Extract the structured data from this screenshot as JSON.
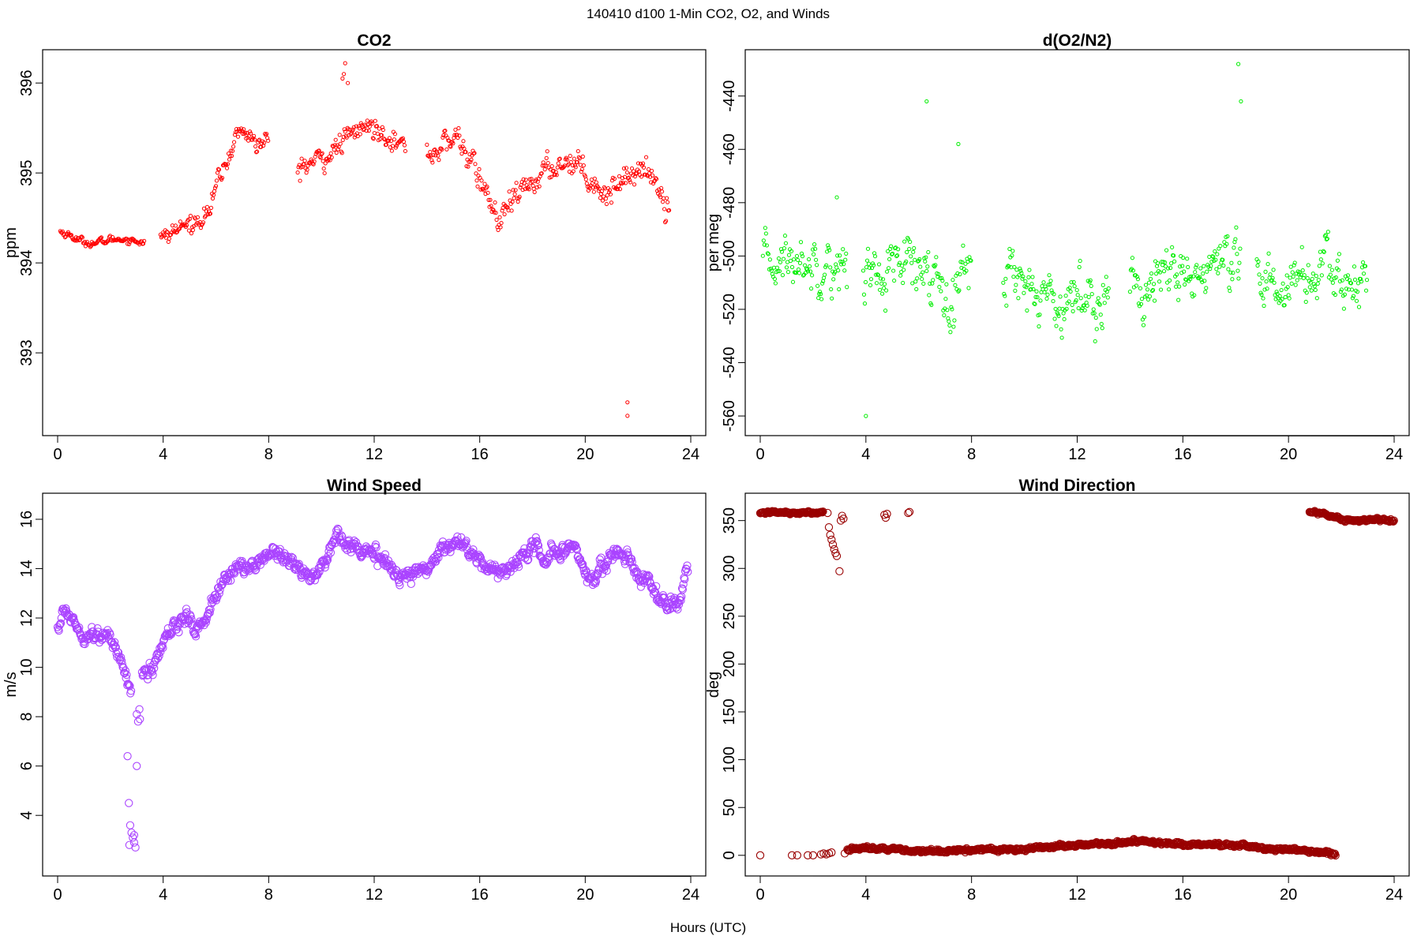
{
  "figure": {
    "title": "140410   d100   1-Min CO2, O2, and Winds",
    "xlabel": "Hours (UTC)"
  },
  "chart_data": [
    {
      "id": "co2",
      "type": "scatter",
      "title": "CO2",
      "xlabel": "",
      "ylabel": "ppm",
      "xlim": [
        0,
        24
      ],
      "ylim": [
        392.15,
        396.3
      ],
      "xticks": [
        0,
        4,
        8,
        12,
        16,
        20,
        24
      ],
      "yticks": [
        393,
        394,
        395,
        396
      ],
      "color": "#ff0000",
      "marker": "small-open-circle",
      "segments": [
        {
          "x": [
            0.1,
            0.5,
            1.0,
            1.5,
            2.0,
            2.5,
            3.0,
            3.3
          ],
          "y": [
            394.35,
            394.3,
            394.23,
            394.22,
            394.26,
            394.27,
            394.24,
            394.25
          ],
          "noise": 0.04
        },
        {
          "x": [
            3.9,
            4.3,
            4.7,
            5.2,
            5.8,
            6.1,
            6.4,
            6.8,
            7.2,
            7.6,
            8.0
          ],
          "y": [
            394.25,
            394.33,
            394.4,
            394.45,
            394.6,
            394.95,
            395.1,
            395.45,
            395.45,
            395.3,
            395.35
          ],
          "noise": 0.1
        },
        {
          "x": [
            9.1,
            9.5,
            10.0,
            10.5,
            11.0,
            11.5,
            12.0,
            12.5,
            13.0,
            13.2
          ],
          "y": [
            395.05,
            395.1,
            395.15,
            395.25,
            395.4,
            395.5,
            395.5,
            395.45,
            395.3,
            395.3
          ],
          "noise": 0.12
        },
        {
          "x": [
            14.0,
            14.6,
            15.2,
            15.8,
            16.3,
            16.7,
            17.2,
            17.8,
            18.4,
            19.0,
            19.6,
            20.2,
            20.8,
            21.4,
            22.0,
            22.6,
            23.2
          ],
          "y": [
            395.2,
            395.3,
            395.4,
            395.05,
            394.75,
            394.45,
            394.65,
            394.85,
            395.0,
            395.1,
            395.15,
            394.95,
            394.75,
            394.95,
            395.05,
            394.95,
            394.6
          ],
          "noise": 0.14
        }
      ],
      "outliers": [
        {
          "x": [
            10.8,
            10.85,
            10.9,
            11.0
          ],
          "y": [
            396.05,
            396.1,
            396.22,
            396.0
          ]
        },
        {
          "x": [
            21.6,
            21.6
          ],
          "y": [
            392.45,
            392.3
          ]
        }
      ]
    },
    {
      "id": "o2",
      "type": "scatter",
      "title": "d(O2/N2)",
      "xlabel": "",
      "ylabel": "per meg",
      "xlim": [
        0,
        24
      ],
      "ylim": [
        -565,
        -425
      ],
      "xticks": [
        0,
        4,
        8,
        12,
        16,
        20,
        24
      ],
      "yticks": [
        -560,
        -540,
        -520,
        -500,
        -480,
        -460,
        -440
      ],
      "color": "#00ee00",
      "marker": "small-open-circle",
      "segments": [
        {
          "x": [
            0.1,
            0.8,
            1.6,
            2.4,
            3.3
          ],
          "y": [
            -503,
            -502,
            -502,
            -502,
            -505
          ],
          "noise": 9
        },
        {
          "x": [
            3.9,
            4.8,
            5.6,
            6.4,
            7.2,
            8.0
          ],
          "y": [
            -507,
            -506,
            -504,
            -508,
            -510,
            -505
          ],
          "noise": 11
        },
        {
          "x": [
            9.2,
            10.0,
            10.8,
            11.6,
            12.4,
            13.2
          ],
          "y": [
            -503,
            -510,
            -515,
            -517,
            -515,
            -512
          ],
          "noise": 10
        },
        {
          "x": [
            14.0,
            15.0,
            16.0,
            17.0,
            18.2
          ],
          "y": [
            -513,
            -511,
            -508,
            -506,
            -507
          ],
          "noise": 11
        },
        {
          "x": [
            18.8,
            19.6,
            20.4,
            21.2,
            22.0,
            23.0
          ],
          "y": [
            -510,
            -511,
            -508,
            -506,
            -510,
            -510
          ],
          "noise": 10
        }
      ],
      "outliers": [
        {
          "x": [
            6.3,
            18.1,
            18.2,
            4.0,
            2.9,
            7.5
          ],
          "y": [
            -442,
            -428,
            -442,
            -560,
            -478,
            -458
          ]
        }
      ]
    },
    {
      "id": "wind-speed",
      "type": "scatter",
      "title": "Wind Speed",
      "xlabel": "",
      "ylabel": "m/s",
      "xlim": [
        0,
        24
      ],
      "ylim": [
        1.8,
        16.8
      ],
      "xticks": [
        0,
        4,
        8,
        12,
        16,
        20,
        24
      ],
      "yticks": [
        4,
        6,
        8,
        10,
        12,
        14,
        16
      ],
      "color": "#aa44ff",
      "marker": "open-circle",
      "segments": [
        {
          "x": [
            0.0,
            0.3,
            0.6,
            1.0,
            1.5,
            2.0,
            2.3,
            2.6,
            2.8
          ],
          "y": [
            11.6,
            12.3,
            11.9,
            11.3,
            11.4,
            11.1,
            10.6,
            9.7,
            8.9
          ],
          "noise": 0.28
        },
        {
          "x": [
            3.2,
            3.6,
            4.0,
            4.4,
            4.8,
            5.2,
            5.6,
            6.0,
            6.4,
            6.8,
            7.2,
            7.6,
            8.0,
            8.4,
            8.8,
            9.2,
            9.6,
            10.0,
            10.4,
            10.6,
            10.9,
            11.4,
            12.0,
            12.6,
            13.0,
            13.4,
            14.0,
            14.6,
            15.0,
            15.4,
            15.8,
            16.2,
            16.8,
            17.4,
            18.0,
            18.6,
            19.0,
            19.6,
            20.0,
            20.4,
            21.0,
            21.6,
            22.0,
            22.4,
            22.8,
            23.2,
            23.6,
            23.9
          ],
          "y": [
            9.8,
            9.9,
            11.0,
            11.6,
            12.2,
            11.5,
            11.9,
            13.0,
            13.5,
            14.2,
            14.0,
            14.2,
            14.7,
            14.7,
            14.3,
            13.9,
            13.7,
            14.0,
            14.8,
            15.7,
            15.1,
            14.8,
            14.5,
            14.2,
            13.6,
            13.8,
            14.0,
            14.9,
            15.1,
            15.0,
            14.4,
            14.1,
            13.9,
            14.2,
            14.9,
            14.5,
            14.7,
            14.9,
            13.8,
            13.7,
            14.5,
            14.7,
            13.6,
            13.6,
            12.8,
            12.5,
            12.6,
            14.0
          ],
          "noise": 0.3
        }
      ],
      "outliers": [
        {
          "x": [
            2.65,
            2.7,
            2.75,
            2.8,
            2.85,
            2.9,
            2.95,
            3.0,
            3.05,
            3.1,
            2.72,
            2.9,
            3.0,
            3.12
          ],
          "y": [
            6.4,
            4.5,
            3.6,
            3.3,
            3.1,
            2.9,
            2.7,
            6.0,
            7.8,
            8.3,
            2.8,
            3.2,
            8.1,
            7.9
          ]
        }
      ]
    },
    {
      "id": "wind-direction",
      "type": "scatter",
      "title": "Wind Direction",
      "xlabel": "",
      "ylabel": "deg",
      "xlim": [
        0,
        24
      ],
      "ylim": [
        -15,
        372
      ],
      "xticks": [
        0,
        4,
        8,
        12,
        16,
        20,
        24
      ],
      "yticks": [
        0,
        50,
        100,
        150,
        200,
        250,
        300,
        350
      ],
      "color": "#990000",
      "marker": "open-circle",
      "segments": [
        {
          "x": [
            0.0,
            0.6,
            1.2,
            1.8,
            2.4
          ],
          "y": [
            358,
            359,
            358,
            358,
            359
          ],
          "noise": 1.2
        },
        {
          "x": [
            3.3,
            4.0,
            4.6,
            5.2,
            5.8,
            6.4,
            7.0,
            8.0,
            9.0,
            10.0,
            11.0,
            12.0,
            13.0,
            14.0,
            14.6,
            15.2,
            16.0,
            17.0,
            18.0,
            19.0,
            19.6,
            20.2,
            20.8,
            21.4,
            21.8
          ],
          "y": [
            6,
            8,
            7,
            6,
            4,
            4,
            5,
            6,
            6,
            7,
            9,
            11,
            12,
            14,
            15,
            13,
            12,
            11,
            10,
            8,
            6,
            5,
            4,
            3,
            1
          ],
          "noise": 1.8
        },
        {
          "x": [
            20.8,
            21.3,
            21.6,
            22.0,
            22.5,
            23.0,
            23.5,
            24.0
          ],
          "y": [
            359,
            358,
            355,
            352,
            350,
            350,
            351,
            350
          ],
          "noise": 1.6
        }
      ],
      "outliers": [
        {
          "x": [
            2.55,
            2.6,
            2.65,
            2.7,
            2.75,
            2.8,
            2.85,
            2.9,
            3.0,
            3.05,
            3.1,
            3.15,
            4.7,
            4.75,
            4.8,
            5.6,
            5.65,
            0.0,
            1.2,
            1.4,
            1.8,
            2.0,
            2.3,
            2.4,
            2.5,
            2.6,
            2.7,
            3.2
          ],
          "y": [
            358,
            343,
            335,
            330,
            325,
            320,
            316,
            313,
            297,
            350,
            355,
            352,
            356,
            353,
            357,
            358,
            359,
            0,
            0,
            0,
            0,
            0,
            1,
            2,
            1,
            2,
            3,
            2
          ]
        }
      ]
    }
  ]
}
